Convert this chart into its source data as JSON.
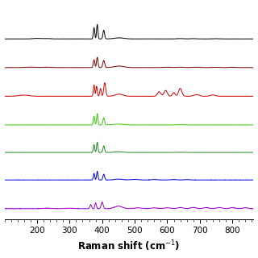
{
  "xlabel": "Raman shift (cm$^{-1}$)",
  "xlim": [
    100,
    865
  ],
  "xticks": [
    200,
    300,
    400,
    500,
    600,
    700,
    800
  ],
  "xtick_labels": [
    "200",
    "300",
    "400",
    "500",
    "600",
    "700",
    "800"
  ],
  "colors": [
    "black",
    "#7a0000",
    "#cc0000",
    "#33cc00",
    "#228822",
    "#0000dd",
    "#9900cc"
  ],
  "offsets": [
    1.55,
    1.3,
    1.05,
    0.8,
    0.56,
    0.32,
    0.07
  ],
  "background": "#ffffff",
  "linewidth": 0.7,
  "figsize": [
    3.2,
    3.2
  ],
  "dpi": 100
}
